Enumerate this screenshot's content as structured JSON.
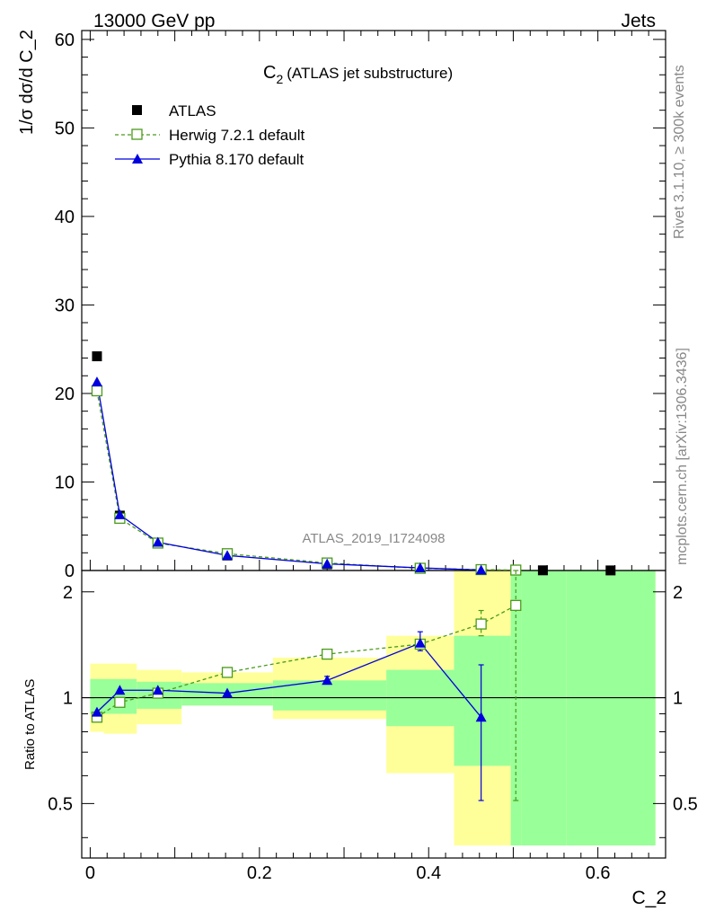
{
  "header": {
    "left": "13000 GeV pp",
    "right": "Jets"
  },
  "side_labels": {
    "rivet": "Rivet 3.1.10, ≥ 300k events",
    "mcplots": "mcplots.cern.ch [arXiv:1306.3436]"
  },
  "chart_data": {
    "type": "scatter",
    "title": "C_2 (ATLAS jet substructure)",
    "title_main": "C",
    "title_sub": "2",
    "title_rest": "(ATLAS jet substructure)",
    "watermark": "ATLAS_2019_I1724098",
    "xlabel": "C_2",
    "ylabel_main": "1/σ dσ/d C_2",
    "ylabel_ratio": "Ratio to ATLAS",
    "xlim": [
      -0.01,
      0.68
    ],
    "ylim_main": [
      0,
      61
    ],
    "ylim_ratio": [
      0.35,
      2.3
    ],
    "ratio_scale": "log",
    "x_ticks": [
      "0",
      "0.2",
      "0.4",
      "0.6"
    ],
    "y_ticks_main": [
      "0",
      "10",
      "20",
      "30",
      "40",
      "50",
      "60"
    ],
    "y_ticks_ratio": [
      "0.5",
      "1",
      "2"
    ],
    "legend_position": "top-left",
    "legend": [
      {
        "name": "ATLAS",
        "marker": "filled-square",
        "color": "#000000"
      },
      {
        "name": "Herwig 7.2.1 default",
        "marker": "open-square-dashed",
        "color": "#4a9a1a"
      },
      {
        "name": "Pythia 8.170 default",
        "marker": "filled-triangle",
        "color": "#0000dd"
      }
    ],
    "bins": [
      {
        "lo": 0.0,
        "hi": 0.016
      },
      {
        "lo": 0.016,
        "hi": 0.055
      },
      {
        "lo": 0.055,
        "hi": 0.108
      },
      {
        "lo": 0.108,
        "hi": 0.216
      },
      {
        "lo": 0.216,
        "hi": 0.35
      },
      {
        "lo": 0.35,
        "hi": 0.43
      },
      {
        "lo": 0.43,
        "hi": 0.497
      },
      {
        "lo": 0.497,
        "hi": 0.51
      },
      {
        "lo": 0.51,
        "hi": 0.563
      },
      {
        "lo": 0.563,
        "hi": 0.668
      }
    ],
    "atlas": {
      "x": [
        0.008,
        0.035,
        0.08,
        0.162,
        0.28,
        0.39,
        0.462,
        0.503,
        0.535,
        0.615
      ],
      "y": [
        24.2,
        6.2,
        3.1,
        1.7,
        0.7,
        0.2,
        0.07,
        0.04,
        0.02,
        0.01
      ]
    },
    "herwig": {
      "x": [
        0.008,
        0.035,
        0.08,
        0.162,
        0.28,
        0.39,
        0.462,
        0.503
      ],
      "y": [
        20.3,
        5.9,
        3.1,
        1.9,
        0.85,
        0.25,
        0.1,
        0.05
      ],
      "ratio": [
        0.88,
        0.97,
        1.03,
        1.18,
        1.33,
        1.42,
        1.62,
        1.83
      ],
      "ratio_err_lo": [
        0,
        0,
        0,
        0,
        0,
        0,
        0.12,
        1.32
      ],
      "ratio_err_hi": [
        0,
        0,
        0,
        0,
        0,
        0,
        0.15,
        0.6
      ]
    },
    "pythia": {
      "x": [
        0.008,
        0.035,
        0.08,
        0.162,
        0.28,
        0.39,
        0.462
      ],
      "y": [
        21.3,
        6.3,
        3.2,
        1.7,
        0.75,
        0.3,
        0.05
      ],
      "ratio": [
        0.91,
        1.05,
        1.05,
        1.03,
        1.12,
        1.43,
        0.88
      ],
      "ratio_err_lo": [
        0,
        0,
        0,
        0,
        0.02,
        0.07,
        0.37
      ],
      "ratio_err_hi": [
        0,
        0,
        0,
        0,
        0.03,
        0.11,
        0.36
      ]
    },
    "band_green": {
      "lo": [
        0.9,
        0.9,
        0.93,
        0.95,
        0.92,
        0.83,
        0.64,
        0.38,
        0.38,
        0.38
      ],
      "hi": [
        1.13,
        1.13,
        1.11,
        1.1,
        1.12,
        1.2,
        1.5,
        2.3,
        2.3,
        2.3
      ]
    },
    "band_yellow": {
      "lo": [
        0.8,
        0.79,
        0.84,
        0.95,
        0.87,
        0.61,
        0.38,
        0.38,
        0.38,
        0.38
      ],
      "hi": [
        1.25,
        1.25,
        1.2,
        1.18,
        1.3,
        1.5,
        2.3,
        2.3,
        0.58,
        2.3
      ]
    },
    "colors": {
      "band_green": "#99ff99",
      "band_yellow": "#ffff99",
      "herwig": "#4a9a1a",
      "pythia": "#0000dd",
      "atlas": "#000000"
    }
  }
}
